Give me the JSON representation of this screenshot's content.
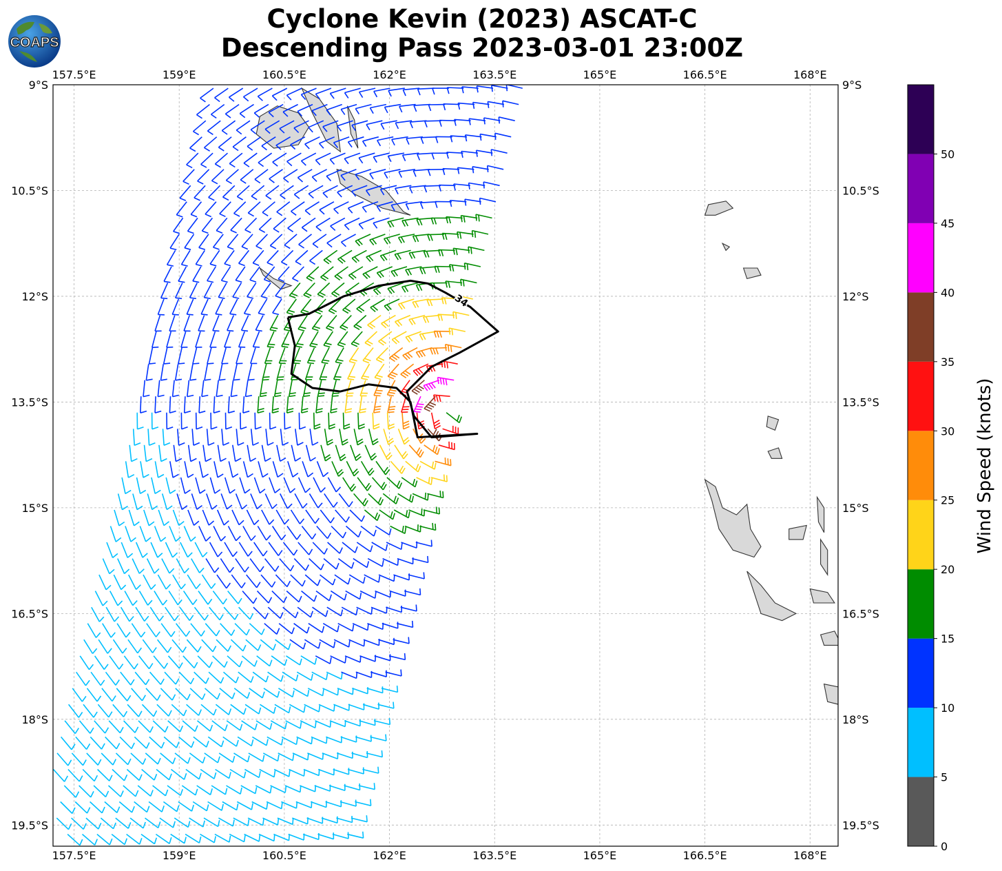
{
  "title": {
    "line1": "Cyclone Kevin (2023) ASCAT-C",
    "line2": "Descending Pass 2023-03-01 23:00Z"
  },
  "logo": {
    "text": "COAPS"
  },
  "map": {
    "lon_range": [
      157.2,
      168.4
    ],
    "lat_range": [
      -19.8,
      -9.0
    ],
    "lon_ticks": [
      "157.5°E",
      "159°E",
      "160.5°E",
      "162°E",
      "163.5°E",
      "165°E",
      "166.5°E",
      "168°E"
    ],
    "lat_ticks": [
      "9°S",
      "10.5°S",
      "12°S",
      "13.5°S",
      "15°S",
      "16.5°S",
      "18°S",
      "19.5°S"
    ],
    "lon_tick_values": [
      157.5,
      159,
      160.5,
      162,
      163.5,
      165,
      166.5,
      168
    ],
    "lat_tick_values": [
      -9,
      -10.5,
      -12,
      -13.5,
      -15,
      -16.5,
      -18,
      -19.5
    ],
    "gridlines": true,
    "land_color": "#d9d9d9",
    "coast_color": "#333333"
  },
  "wind_field": {
    "center": [
      162.85,
      -13.6
    ],
    "contour_label": "34",
    "contour_color": "#000000",
    "units": "knots"
  },
  "colorbar": {
    "title": "Wind Speed (knots)",
    "tick_labels": [
      "0",
      "5",
      "10",
      "15",
      "20",
      "25",
      "30",
      "35",
      "40",
      "45",
      "50"
    ],
    "bins": [
      {
        "min": 0,
        "max": 5,
        "color": "#595959"
      },
      {
        "min": 5,
        "max": 10,
        "color": "#00bfff"
      },
      {
        "min": 10,
        "max": 15,
        "color": "#0033ff"
      },
      {
        "min": 15,
        "max": 20,
        "color": "#008c00"
      },
      {
        "min": 20,
        "max": 25,
        "color": "#ffd419"
      },
      {
        "min": 25,
        "max": 30,
        "color": "#ff8c0a"
      },
      {
        "min": 30,
        "max": 35,
        "color": "#ff1111"
      },
      {
        "min": 35,
        "max": 40,
        "color": "#7f3e27"
      },
      {
        "min": 40,
        "max": 45,
        "color": "#ff00ff"
      },
      {
        "min": 45,
        "max": 50,
        "color": "#8000b3"
      },
      {
        "min": 50,
        "max": 55,
        "color": "#2d0055"
      }
    ]
  }
}
